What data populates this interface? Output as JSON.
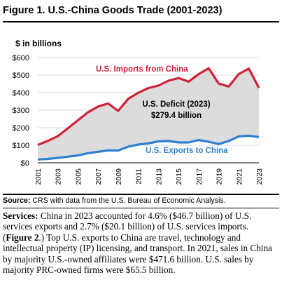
{
  "figure_title": "Figure 1. U.S.-China Goods Trade (2001-2023)",
  "chart_data": {
    "type": "area",
    "units_label": "$ in billions",
    "x": [
      2001,
      2002,
      2003,
      2004,
      2005,
      2006,
      2007,
      2008,
      2009,
      2010,
      2011,
      2012,
      2013,
      2014,
      2015,
      2016,
      2017,
      2018,
      2019,
      2020,
      2021,
      2022,
      2023
    ],
    "ylim": [
      0,
      600
    ],
    "ytick_labels": [
      "$0",
      "$100",
      "$200",
      "$300",
      "$400",
      "$500",
      "$600"
    ],
    "ytick_values": [
      0,
      100,
      200,
      300,
      400,
      500,
      600
    ],
    "xtick_labels": [
      "2001",
      "2003",
      "2005",
      "2007",
      "2009",
      "2011",
      "2013",
      "2015",
      "2017",
      "2019",
      "2021",
      "2023"
    ],
    "grid": "horizontal",
    "series": [
      {
        "name": "U.S. Imports from China",
        "color": "#d0213b",
        "values": [
          102,
          125,
          152,
          197,
          243,
          288,
          321,
          338,
          296,
          365,
          399,
          426,
          440,
          468,
          483,
          463,
          505,
          539,
          452,
          435,
          506,
          537,
          427
        ]
      },
      {
        "name": "U.S. Exports to China",
        "color": "#2f7fd0",
        "values": [
          19,
          22,
          28,
          35,
          42,
          55,
          63,
          71,
          70,
          92,
          104,
          111,
          122,
          124,
          116,
          116,
          130,
          120,
          107,
          124,
          151,
          154,
          147
        ]
      }
    ],
    "deficit_fill": "#dcdcdc",
    "annotation": {
      "line1": "U.S. Deficit (2023)",
      "line2": "$279.4 billion"
    }
  },
  "source": {
    "label": "Source:",
    "text": " CRS with data from the U.S. Bureau of Economic Analysis."
  },
  "paragraph": {
    "lead": "Services:",
    "text1": " China in 2023 accounted for 4.6% ($46.7 billion) of U.S. services exports and 2.7% ($20.1 billion) of U.S. services imports. (",
    "figref": "Figure 2",
    "text2": ".) Top U.S. exports to China are travel, technology and intellectual property (IP) licensing, and transport. In 2021, sales in China by majority U.S.-owned affiliates were $471.6 billion. U.S. sales by majority PRC-owned firms were $65.5 billion."
  }
}
